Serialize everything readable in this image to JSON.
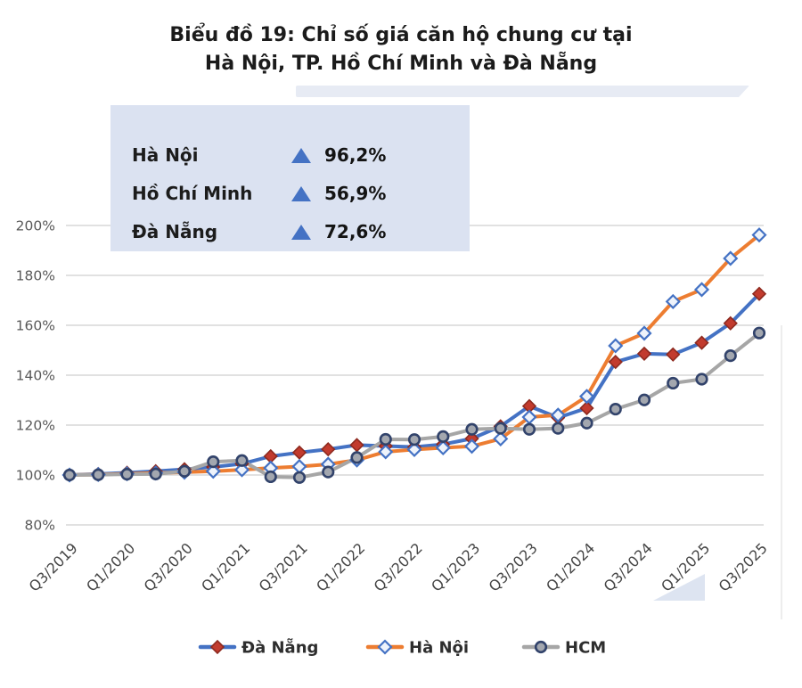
{
  "title": {
    "line1": "Biểu đồ 19: Chỉ số giá căn hộ chung cư tại",
    "line2": "Hà Nội, TP. Hồ Chí Minh và Đà Nẵng"
  },
  "summary_legend": {
    "background": "#dbe2f1",
    "triangle_color": "#4472c4",
    "rows": [
      {
        "label": "Hà Nội",
        "value": "96,2%"
      },
      {
        "label": "Hồ Chí Minh",
        "value": "56,9%"
      },
      {
        "label": "Đà Nẵng",
        "value": "72,6%"
      }
    ]
  },
  "chart_data": {
    "type": "line",
    "title": "Biểu đồ 19: Chỉ số giá căn hộ chung cư tại Hà Nội, TP. Hồ Chí Minh và Đà Nẵng",
    "xlabel": "",
    "ylabel": "",
    "ylim": [
      80,
      200
    ],
    "yticks": [
      80,
      100,
      120,
      140,
      160,
      180,
      200
    ],
    "ytick_suffix": "%",
    "grid": true,
    "legend_position": "bottom",
    "x": [
      "Q3/2019",
      "Q4/2019",
      "Q1/2020",
      "Q2/2020",
      "Q3/2020",
      "Q4/2020",
      "Q1/2021",
      "Q2/2021",
      "Q3/2021",
      "Q4/2021",
      "Q1/2022",
      "Q2/2022",
      "Q3/2022",
      "Q4/2022",
      "Q1/2023",
      "Q2/2023",
      "Q3/2023",
      "Q4/2023",
      "Q1/2024",
      "Q2/2024",
      "Q3/2024",
      "Q4/2024",
      "Q1/2025",
      "Q2/2025",
      "Q3/2025"
    ],
    "x_tick_every": 2,
    "series": [
      {
        "id": "da-nang",
        "name": "Đà Nẵng",
        "color": "#4472c4",
        "marker": "diamond",
        "marker_fill": "#c23b2e",
        "marker_stroke": "#8e2a1f",
        "values": [
          100.0,
          100.4,
          100.9,
          101.5,
          102.3,
          103.2,
          104.5,
          107.5,
          109.0,
          110.3,
          112.0,
          111.6,
          111.2,
          112.3,
          114.6,
          119.5,
          127.6,
          123.0,
          126.8,
          145.3,
          148.6,
          148.3,
          153.0,
          160.8,
          172.6
        ]
      },
      {
        "id": "ha-noi",
        "name": "Hà Nội",
        "color": "#ed7d31",
        "marker": "diamond",
        "marker_fill": "#eef3fb",
        "marker_stroke": "#4472c4",
        "values": [
          100.0,
          100.2,
          100.5,
          100.8,
          101.1,
          101.5,
          102.1,
          102.8,
          103.4,
          104.3,
          106.0,
          109.3,
          110.2,
          110.9,
          111.5,
          114.5,
          123.2,
          124.0,
          131.5,
          151.8,
          156.8,
          169.5,
          174.3,
          186.8,
          196.2
        ]
      },
      {
        "id": "hcm",
        "name": "HCM",
        "color": "#a6a6a6",
        "marker": "circle",
        "marker_fill": "#a3a7af",
        "marker_stroke": "#32436b",
        "values": [
          100.0,
          100.1,
          100.3,
          100.4,
          101.5,
          105.3,
          105.8,
          99.3,
          99.0,
          101.2,
          107.0,
          114.3,
          114.2,
          115.4,
          118.3,
          118.7,
          118.3,
          118.7,
          120.8,
          126.4,
          130.1,
          136.8,
          138.4,
          147.8,
          156.9
        ]
      }
    ]
  }
}
